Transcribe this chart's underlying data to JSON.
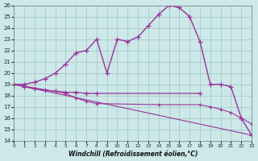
{
  "xlabel": "Windchill (Refroidissement éolien,°C)",
  "xlim": [
    0,
    23
  ],
  "ylim": [
    14,
    26
  ],
  "xticks": [
    0,
    1,
    2,
    3,
    4,
    5,
    6,
    7,
    8,
    9,
    10,
    11,
    12,
    13,
    14,
    15,
    16,
    17,
    18,
    19,
    20,
    21,
    22,
    23
  ],
  "yticks": [
    14,
    15,
    16,
    17,
    18,
    19,
    20,
    21,
    22,
    23,
    24,
    25,
    26
  ],
  "bg_color": "#cce8e8",
  "series": [
    {
      "x": [
        0,
        1,
        2,
        3,
        4,
        5,
        6,
        7,
        8,
        9,
        10,
        11,
        12,
        13,
        14,
        15,
        16,
        17,
        18,
        19,
        20,
        21,
        22,
        23
      ],
      "y": [
        19,
        19,
        19.2,
        19.5,
        20.0,
        20.8,
        21.8,
        22.0,
        23.0,
        20.0,
        23.0,
        22.8,
        23.2,
        24.2,
        25.2,
        26.0,
        25.8,
        25.0,
        22.8,
        19.0,
        19.0,
        18.8,
        16.0,
        14.5
      ],
      "marker": "+",
      "markersize": 4,
      "linewidth": 1.0,
      "color": "#993399"
    },
    {
      "x": [
        0,
        1,
        2,
        3,
        4,
        5,
        6,
        7,
        8,
        18
      ],
      "y": [
        19,
        18.8,
        18.6,
        18.5,
        18.4,
        18.3,
        18.3,
        18.2,
        18.2,
        18.2
      ],
      "marker": "+",
      "markersize": 4,
      "linewidth": 0.9,
      "color": "#993399"
    },
    {
      "x": [
        0,
        5,
        6,
        7,
        8,
        14,
        18,
        19,
        20,
        21,
        22,
        23
      ],
      "y": [
        19,
        18.2,
        17.8,
        17.5,
        17.3,
        17.2,
        17.2,
        17.0,
        16.8,
        16.5,
        16.0,
        15.5
      ],
      "marker": "+",
      "markersize": 3,
      "linewidth": 0.8,
      "color": "#993399"
    },
    {
      "x": [
        0,
        23
      ],
      "y": [
        19,
        14.5
      ],
      "marker": null,
      "markersize": 0,
      "linewidth": 0.8,
      "color": "#993399"
    }
  ]
}
